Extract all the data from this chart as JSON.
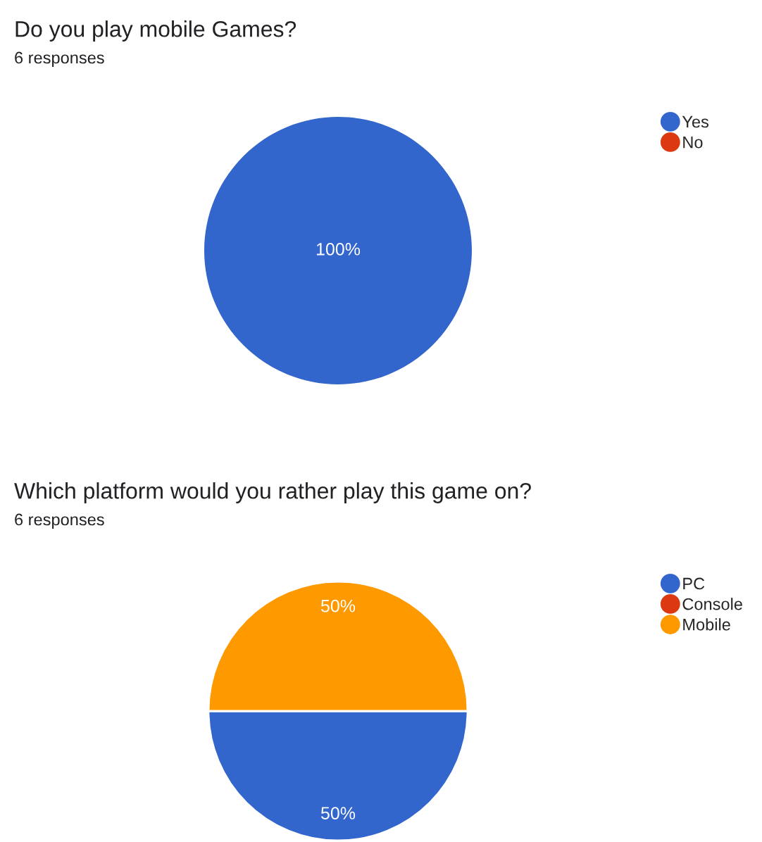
{
  "chart_data": [
    {
      "type": "pie",
      "title": "Do you play mobile Games?",
      "subtitle": "6 responses",
      "categories": [
        "Yes",
        "No"
      ],
      "values": [
        100,
        0
      ],
      "colors": [
        "#3366cc",
        "#dc3912"
      ],
      "value_labels": [
        "100%",
        null
      ],
      "legend": "right"
    },
    {
      "type": "pie",
      "title": "Which platform would you rather play this game on?",
      "subtitle": "6 responses",
      "categories": [
        "PC",
        "Console",
        "Mobile"
      ],
      "values": [
        50,
        0,
        50
      ],
      "colors": [
        "#3366cc",
        "#dc3912",
        "#ff9900"
      ],
      "value_labels": [
        "50%",
        null,
        "50%"
      ],
      "legend": "right"
    }
  ]
}
